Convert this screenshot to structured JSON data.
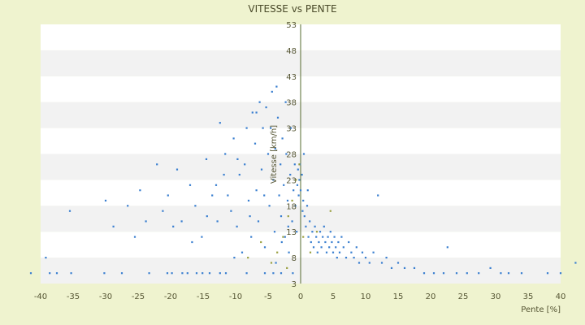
{
  "chart_data": {
    "type": "scatter",
    "title": "VITESSE vs PENTE",
    "xlabel": "Pente [%]",
    "ylabel": "Vitesse [km/h]",
    "xlim": [
      -40,
      40
    ],
    "ylim": [
      3,
      53
    ],
    "x_ticks": [
      -40,
      -35,
      -30,
      -25,
      -20,
      -15,
      -10,
      -5,
      0,
      5,
      10,
      15,
      20,
      25,
      30,
      35,
      40
    ],
    "y_ticks": [
      3,
      8,
      13,
      18,
      23,
      28,
      33,
      38,
      43,
      48,
      53
    ],
    "grid": "horizontal bands",
    "legend": "none",
    "colors": {
      "background": "#eff3cf",
      "plot_band_light": "#ffffff",
      "plot_band_dark": "#f2f2f2",
      "point_primary": "#3a7fd0",
      "point_secondary": "#9aa040",
      "zero_axis": "#556b2f"
    },
    "series": [
      {
        "points": [
          [
            -41.5,
            5
          ],
          [
            -39.2,
            8
          ],
          [
            -38.6,
            5
          ],
          [
            -37.5,
            5
          ],
          [
            -35.3,
            5
          ],
          [
            -30.2,
            5
          ],
          [
            -27.5,
            5
          ],
          [
            -23.3,
            5
          ],
          [
            -20.5,
            5
          ],
          [
            -19.8,
            5
          ],
          [
            -18.2,
            5
          ],
          [
            -17.4,
            5
          ],
          [
            -16.0,
            5
          ],
          [
            -15.1,
            5
          ],
          [
            -14.0,
            5
          ],
          [
            -12.4,
            5
          ],
          [
            -11.5,
            5
          ],
          [
            -8.3,
            5
          ],
          [
            -5.5,
            5
          ],
          [
            -4.2,
            5
          ],
          [
            -3.0,
            5
          ],
          [
            -1.2,
            5
          ],
          [
            -35.5,
            17
          ],
          [
            -30.0,
            19
          ],
          [
            -28.8,
            14
          ],
          [
            -26.6,
            18
          ],
          [
            -25.5,
            12
          ],
          [
            -24.7,
            21
          ],
          [
            -23.8,
            15
          ],
          [
            -22.1,
            26
          ],
          [
            -21.2,
            17
          ],
          [
            -20.4,
            20
          ],
          [
            -19.6,
            14
          ],
          [
            -19.0,
            25
          ],
          [
            -18.3,
            15
          ],
          [
            -17.0,
            22
          ],
          [
            -16.2,
            18
          ],
          [
            -15.2,
            12
          ],
          [
            -14.5,
            27
          ],
          [
            -13.6,
            20
          ],
          [
            -13.0,
            22
          ],
          [
            -12.8,
            15
          ],
          [
            -12.4,
            34
          ],
          [
            -11.6,
            28
          ],
          [
            -11.2,
            20
          ],
          [
            -10.7,
            17
          ],
          [
            -10.3,
            31
          ],
          [
            -9.8,
            14
          ],
          [
            -9.4,
            24
          ],
          [
            -9.0,
            9
          ],
          [
            -8.6,
            26
          ],
          [
            -8.3,
            33
          ],
          [
            -8.0,
            19
          ],
          [
            -7.6,
            12
          ],
          [
            -7.4,
            36
          ],
          [
            -7.0,
            30
          ],
          [
            -6.8,
            21
          ],
          [
            -6.5,
            15
          ],
          [
            -6.3,
            38
          ],
          [
            -6.0,
            25
          ],
          [
            -5.8,
            33
          ],
          [
            -5.5,
            10
          ],
          [
            -5.3,
            37
          ],
          [
            -5.0,
            28
          ],
          [
            -4.8,
            18
          ],
          [
            -4.6,
            33
          ],
          [
            -4.4,
            40
          ],
          [
            -4.2,
            23
          ],
          [
            -4.0,
            13
          ],
          [
            -3.9,
            29
          ],
          [
            -3.7,
            41
          ],
          [
            -3.5,
            35
          ],
          [
            -3.3,
            20
          ],
          [
            -3.1,
            26
          ],
          [
            -3.0,
            16
          ],
          [
            -2.8,
            31
          ],
          [
            -2.6,
            22
          ],
          [
            -2.4,
            12
          ],
          [
            -2.2,
            28
          ],
          [
            -2.0,
            19
          ],
          [
            -1.8,
            9
          ],
          [
            -1.6,
            24
          ],
          [
            -1.5,
            33
          ],
          [
            -1.3,
            15
          ],
          [
            -1.1,
            21
          ],
          [
            -0.9,
            26
          ],
          [
            -0.8,
            18
          ],
          [
            -0.6,
            13
          ],
          [
            -0.5,
            22
          ],
          [
            -0.4,
            25
          ],
          [
            -0.3,
            20
          ],
          [
            -0.2,
            23
          ],
          [
            -0.1,
            26
          ],
          [
            0.0,
            21
          ],
          [
            -2.3,
            38
          ],
          [
            -6.8,
            36
          ],
          [
            -9.7,
            27
          ],
          [
            -11.8,
            24
          ],
          [
            -14.4,
            16
          ],
          [
            -16.7,
            11
          ],
          [
            -10.2,
            8
          ],
          [
            -7.8,
            16
          ],
          [
            -5.6,
            20
          ],
          [
            -3.8,
            7
          ],
          [
            -2.9,
            11
          ],
          [
            -1.9,
            14
          ],
          [
            0.2,
            24
          ],
          [
            0.4,
            19
          ],
          [
            0.6,
            16
          ],
          [
            0.8,
            14
          ],
          [
            1.0,
            18
          ],
          [
            1.2,
            12
          ],
          [
            1.4,
            15
          ],
          [
            1.6,
            11
          ],
          [
            1.8,
            13
          ],
          [
            2.0,
            10
          ],
          [
            2.2,
            14
          ],
          [
            2.4,
            12
          ],
          [
            2.6,
            9
          ],
          [
            2.8,
            11
          ],
          [
            3.0,
            13
          ],
          [
            3.2,
            10
          ],
          [
            3.4,
            12
          ],
          [
            3.6,
            14
          ],
          [
            3.8,
            11
          ],
          [
            4.0,
            9
          ],
          [
            4.2,
            12
          ],
          [
            4.4,
            10
          ],
          [
            4.6,
            13
          ],
          [
            4.8,
            11
          ],
          [
            5.0,
            9
          ],
          [
            5.2,
            12
          ],
          [
            5.4,
            10
          ],
          [
            5.6,
            8
          ],
          [
            5.8,
            11
          ],
          [
            6.0,
            9
          ],
          [
            6.3,
            12
          ],
          [
            6.6,
            10
          ],
          [
            7.0,
            8
          ],
          [
            7.4,
            11
          ],
          [
            7.8,
            9
          ],
          [
            8.2,
            8
          ],
          [
            8.6,
            10
          ],
          [
            9.0,
            7
          ],
          [
            9.5,
            9
          ],
          [
            10.0,
            8
          ],
          [
            10.6,
            7
          ],
          [
            11.2,
            9
          ],
          [
            11.9,
            20
          ],
          [
            12.5,
            7
          ],
          [
            13.2,
            8
          ],
          [
            14.0,
            6
          ],
          [
            15.0,
            7
          ],
          [
            16.0,
            6
          ],
          [
            17.5,
            6
          ],
          [
            19.0,
            5
          ],
          [
            20.5,
            5
          ],
          [
            22.0,
            5
          ],
          [
            22.6,
            10
          ],
          [
            24.0,
            5
          ],
          [
            25.6,
            5
          ],
          [
            27.4,
            5
          ],
          [
            29.2,
            6
          ],
          [
            30.8,
            5
          ],
          [
            32.0,
            5
          ],
          [
            34.0,
            5
          ],
          [
            38.0,
            5
          ],
          [
            40.0,
            5
          ],
          [
            42.3,
            7
          ],
          [
            0.5,
            28
          ],
          [
            1.1,
            21
          ],
          [
            0.3,
            17
          ]
        ]
      },
      {
        "points": [
          [
            -4.5,
            7
          ],
          [
            -3.6,
            9
          ],
          [
            -2.7,
            12
          ],
          [
            -1.9,
            16
          ],
          [
            -1.3,
            19
          ],
          [
            -0.7,
            23
          ],
          [
            -0.2,
            26
          ],
          [
            0.4,
            12
          ],
          [
            1.5,
            9
          ],
          [
            2.5,
            13
          ],
          [
            4.6,
            17
          ],
          [
            -6.1,
            11
          ],
          [
            -8.1,
            8
          ],
          [
            -2.1,
            6
          ]
        ]
      }
    ]
  }
}
